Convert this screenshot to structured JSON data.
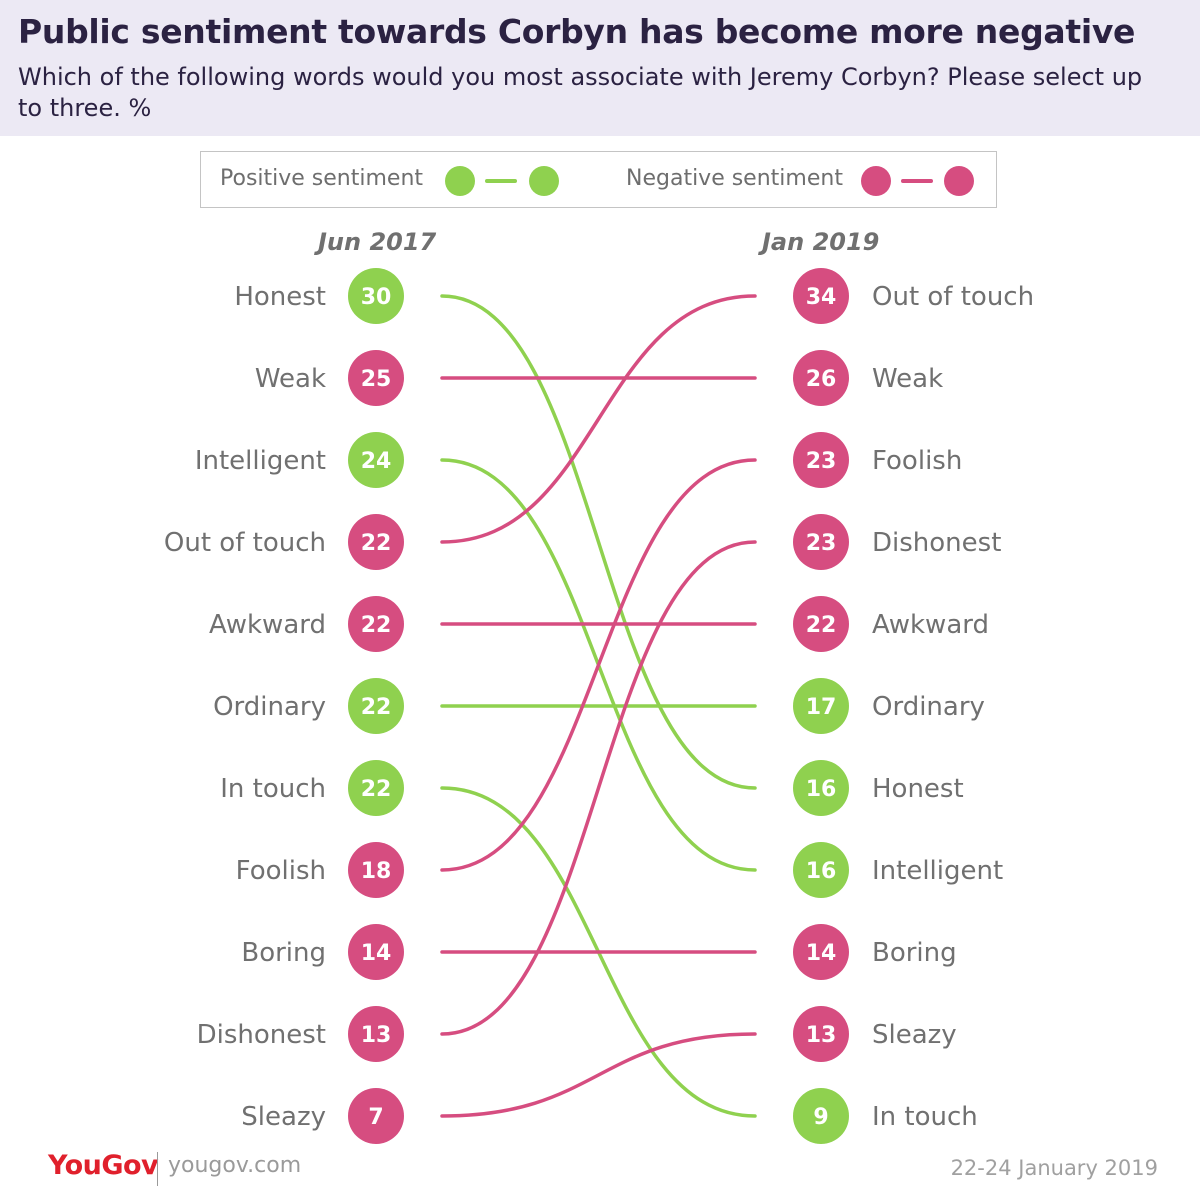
{
  "header": {
    "title": "Public sentiment towards Corbyn has become more negative",
    "subtitle": "Which of the following words would you most associate with Jeremy Corbyn? Please select up to three. %"
  },
  "legend": {
    "positive": "Positive sentiment",
    "negative": "Negative sentiment"
  },
  "colors": {
    "positive": "#8fd14f",
    "negative": "#d64d80",
    "label": "#707070",
    "header_bg": "#ece9f4"
  },
  "chart_data": {
    "type": "slope",
    "title": "Public sentiment towards Corbyn has become more negative",
    "unit": "%",
    "periods": [
      "Jun 2017",
      "Jan 2019"
    ],
    "left": [
      {
        "label": "Honest",
        "value": 30,
        "sentiment": "positive"
      },
      {
        "label": "Weak",
        "value": 25,
        "sentiment": "negative"
      },
      {
        "label": "Intelligent",
        "value": 24,
        "sentiment": "positive"
      },
      {
        "label": "Out of touch",
        "value": 22,
        "sentiment": "negative"
      },
      {
        "label": "Awkward",
        "value": 22,
        "sentiment": "negative"
      },
      {
        "label": "Ordinary",
        "value": 22,
        "sentiment": "positive"
      },
      {
        "label": "In touch",
        "value": 22,
        "sentiment": "positive"
      },
      {
        "label": "Foolish",
        "value": 18,
        "sentiment": "negative"
      },
      {
        "label": "Boring",
        "value": 14,
        "sentiment": "negative"
      },
      {
        "label": "Dishonest",
        "value": 13,
        "sentiment": "negative"
      },
      {
        "label": "Sleazy",
        "value": 7,
        "sentiment": "negative"
      }
    ],
    "right": [
      {
        "label": "Out of touch",
        "value": 34,
        "sentiment": "negative"
      },
      {
        "label": "Weak",
        "value": 26,
        "sentiment": "negative"
      },
      {
        "label": "Foolish",
        "value": 23,
        "sentiment": "negative"
      },
      {
        "label": "Dishonest",
        "value": 23,
        "sentiment": "negative"
      },
      {
        "label": "Awkward",
        "value": 22,
        "sentiment": "negative"
      },
      {
        "label": "Ordinary",
        "value": 17,
        "sentiment": "positive"
      },
      {
        "label": "Honest",
        "value": 16,
        "sentiment": "positive"
      },
      {
        "label": "Intelligent",
        "value": 16,
        "sentiment": "positive"
      },
      {
        "label": "Boring",
        "value": 14,
        "sentiment": "negative"
      },
      {
        "label": "Sleazy",
        "value": 13,
        "sentiment": "negative"
      },
      {
        "label": "In touch",
        "value": 9,
        "sentiment": "positive"
      }
    ]
  },
  "footer": {
    "brand": "YouGov",
    "url": "yougov.com",
    "date": "22-24 January 2019"
  }
}
